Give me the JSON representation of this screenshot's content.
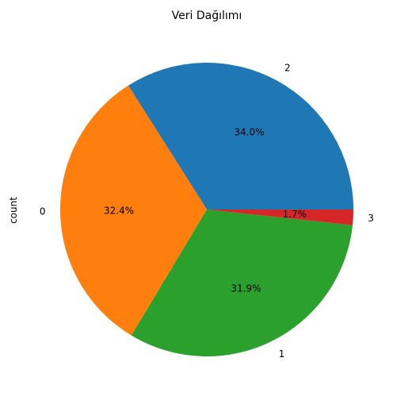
{
  "chart_data": {
    "type": "pie",
    "title": "Veri Dağılımı",
    "ylabel": "count",
    "slices": [
      {
        "label": "2",
        "percent": 34.0,
        "percent_label": "34.0%",
        "color": "#1f77b4"
      },
      {
        "label": "0",
        "percent": 32.4,
        "percent_label": "32.4%",
        "color": "#ff7f0e"
      },
      {
        "label": "1",
        "percent": 31.9,
        "percent_label": "31.9%",
        "color": "#2ca02c"
      },
      {
        "label": "3",
        "percent": 1.7,
        "percent_label": "1.7%",
        "color": "#d62728"
      }
    ],
    "start_angle_deg": 0,
    "direction": "counterclockwise",
    "legend": "none"
  }
}
